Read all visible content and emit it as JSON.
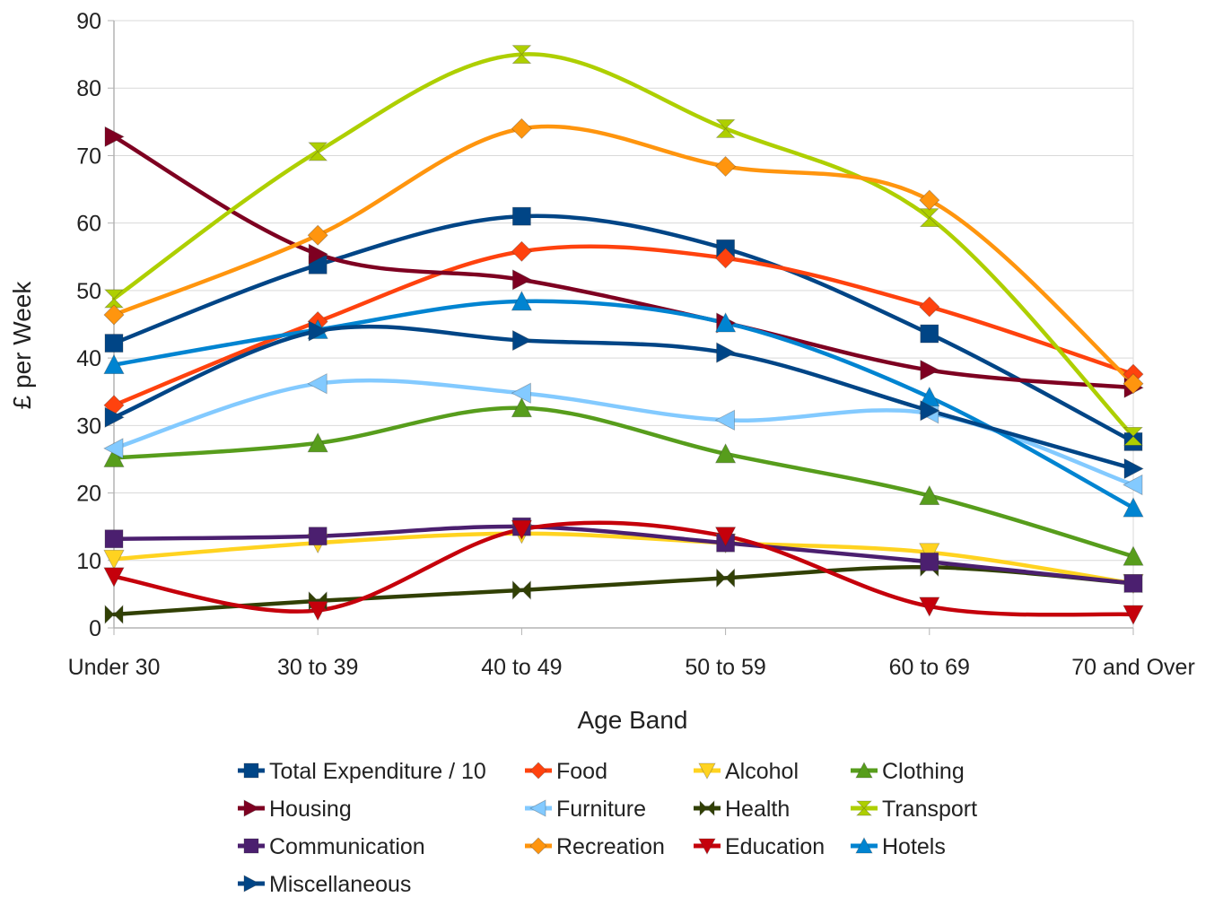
{
  "chart_data": {
    "type": "line",
    "title": "",
    "xlabel": "Age Band",
    "ylabel": "£ per Week",
    "categories": [
      "Under 30",
      "30 to 39",
      "40 to 49",
      "50 to 59",
      "60 to 69",
      "70 and Over"
    ],
    "ylim": [
      0,
      90
    ],
    "yticks": [
      0,
      10,
      20,
      30,
      40,
      50,
      60,
      70,
      80,
      90
    ],
    "grid": "horizontal",
    "legend_position": "bottom",
    "series": [
      {
        "name": "Total Expenditure / 10",
        "color": "#004586",
        "marker": "square",
        "values": [
          42.2,
          53.8,
          61,
          56.2,
          43.6,
          27.6
        ]
      },
      {
        "name": "Food",
        "color": "#ff420e",
        "marker": "diamond",
        "values": [
          33,
          45.4,
          55.8,
          54.8,
          47.6,
          37.6
        ]
      },
      {
        "name": "Alcohol",
        "color": "#ffd320",
        "marker": "triangle-down",
        "values": [
          10.2,
          12.6,
          14,
          12.6,
          11.2,
          6.6
        ]
      },
      {
        "name": "Clothing",
        "color": "#579d1c",
        "marker": "triangle-up",
        "values": [
          25.2,
          27.4,
          32.6,
          25.8,
          19.6,
          10.6
        ]
      },
      {
        "name": "Housing",
        "color": "#7e0021",
        "marker": "triangle-right",
        "values": [
          72.8,
          55.4,
          51.6,
          45.2,
          38.2,
          35.6
        ]
      },
      {
        "name": "Furniture",
        "color": "#83caff",
        "marker": "triangle-left",
        "values": [
          26.6,
          36.2,
          34.8,
          30.8,
          31.8,
          21.2
        ]
      },
      {
        "name": "Health",
        "color": "#314004",
        "marker": "bowtie-h",
        "values": [
          2,
          4,
          5.6,
          7.4,
          9,
          6.6
        ]
      },
      {
        "name": "Transport",
        "color": "#aecf00",
        "marker": "bowtie-v",
        "values": [
          48.8,
          70.6,
          85,
          74,
          60.8,
          28.4
        ]
      },
      {
        "name": "Communication",
        "color": "#4b1f6f",
        "marker": "square",
        "values": [
          13.2,
          13.6,
          15,
          12.6,
          9.8,
          6.6
        ]
      },
      {
        "name": "Recreation",
        "color": "#ff950e",
        "marker": "diamond",
        "values": [
          46.4,
          58.2,
          74,
          68.4,
          63.4,
          36.2
        ]
      },
      {
        "name": "Education",
        "color": "#c5000b",
        "marker": "triangle-down",
        "values": [
          7.6,
          2.6,
          14.6,
          13.6,
          3.2,
          2
        ]
      },
      {
        "name": "Hotels",
        "color": "#0084d1",
        "marker": "triangle-up",
        "values": [
          39,
          44.2,
          48.4,
          45.2,
          34.2,
          17.8
        ]
      },
      {
        "name": "Miscellaneous",
        "color": "#004586",
        "marker": "triangle-right",
        "values": [
          31.2,
          44,
          42.6,
          40.8,
          32.2,
          23.6
        ]
      }
    ]
  }
}
